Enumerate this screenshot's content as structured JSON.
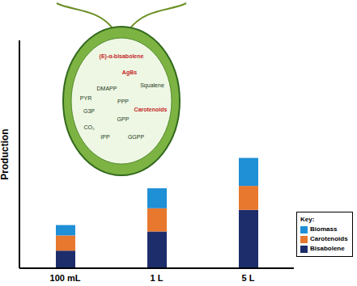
{
  "chart_data": {
    "type": "bar",
    "stacked": true,
    "y_label": "Production",
    "categories": [
      "100 mL",
      "1 L",
      "5 L"
    ],
    "series": [
      {
        "name": "Biomass",
        "color": "#1f8fd6",
        "values": [
          13,
          25,
          35
        ]
      },
      {
        "name": "Carotenoids",
        "color": "#e8782e",
        "values": [
          19,
          29,
          30
        ]
      },
      {
        "name": "Bisabolene",
        "color": "#1d2d6b",
        "values": [
          22,
          46,
          73
        ]
      }
    ],
    "ylim": [
      0,
      285
    ],
    "yticks": [],
    "tick_labels": "x",
    "legend": "lower right",
    "legend_title": "Key:",
    "annotations": [
      {
        "text": "(E)-α-bisabolene",
        "color": "#c62828"
      },
      {
        "text": "AgBs",
        "color": "#c62828"
      },
      {
        "text": "Squalene",
        "color": "#1b3a1b"
      },
      {
        "text": "DMAPP",
        "color": "#1b3a1b"
      },
      {
        "text": "PYR",
        "color": "#1b3a1b"
      },
      {
        "text": "PPP",
        "color": "#1b3a1b"
      },
      {
        "text": "Carotenoids",
        "color": "#c62828"
      },
      {
        "text": "G3P",
        "color": "#1b3a1b"
      },
      {
        "text": "GPP",
        "color": "#1b3a1b"
      },
      {
        "text": "CO₂",
        "color": "#1b3a1b"
      },
      {
        "text": "IPP",
        "color": "#1b3a1b"
      },
      {
        "text": "GGPP",
        "color": "#1b3a1b"
      }
    ]
  }
}
